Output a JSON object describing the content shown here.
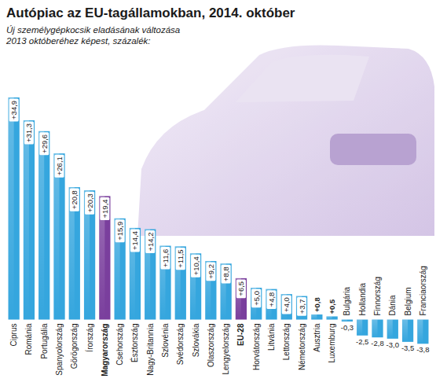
{
  "chart_data": {
    "type": "bar",
    "title": "Autópiac az EU-tagállamokban, 2014. október",
    "subtitle": [
      "Új személygépkocsik eladásának változása",
      "2013 októberéhez képest, százalék:"
    ],
    "categories": [
      "Ciprus",
      "Románia",
      "Portugália",
      "Spanyolország",
      "Görögország",
      "Írország",
      "Magyarország",
      "Csehország",
      "Észtország",
      "Nagy-Britannia",
      "Szlovénia",
      "Svédország",
      "Szlovákia",
      "Olaszország",
      "Lengyelország",
      "EU-28",
      "Horvátország",
      "Litvánia",
      "Lettország",
      "Németország",
      "Ausztria",
      "Luxemburg",
      "Bulgária",
      "Hollandia",
      "Finnország",
      "Dánia",
      "Belgium",
      "Franciaország"
    ],
    "values": [
      34.9,
      31.3,
      29.6,
      26.1,
      20.8,
      20.3,
      19.4,
      15.9,
      14.4,
      14.2,
      11.6,
      11.5,
      10.4,
      9.2,
      8.8,
      6.5,
      5.0,
      4.8,
      4.0,
      3.7,
      0.8,
      0.5,
      -0.3,
      -2.5,
      -2.8,
      -3.0,
      -3.5,
      -3.8
    ],
    "value_labels": [
      "+34,9",
      "+31,3",
      "+29,6",
      "+26,1",
      "+20,8",
      "+20,3",
      "+19,4",
      "+15,9",
      "+14,4",
      "+14,2",
      "+11,6",
      "+11,5",
      "+10,4",
      "+9,2",
      "+8,8",
      "+6,5",
      "+5,0",
      "+4,8",
      "+4,0",
      "+3,7",
      "+0,8",
      "+0,5",
      "-0,3",
      "-2,5",
      "-2,8",
      "-3,0",
      "-3,5",
      "-3,8"
    ],
    "color": "#35a6de",
    "colors": [
      "#35a6de",
      "#35a6de",
      "#35a6de",
      "#35a6de",
      "#35a6de",
      "#35a6de",
      "#7a3f9d",
      "#35a6de",
      "#35a6de",
      "#35a6de",
      "#35a6de",
      "#35a6de",
      "#35a6de",
      "#35a6de",
      "#35a6de",
      "#7a3f9d",
      "#35a6de",
      "#35a6de",
      "#35a6de",
      "#35a6de",
      "#35a6de",
      "#35a6de",
      "#35a6de",
      "#35a6de",
      "#35a6de",
      "#35a6de",
      "#35a6de",
      "#35a6de"
    ],
    "ylim": [
      -5,
      36
    ],
    "yticks": [],
    "grid": false,
    "data_labels": true,
    "tick_labels": "x"
  }
}
